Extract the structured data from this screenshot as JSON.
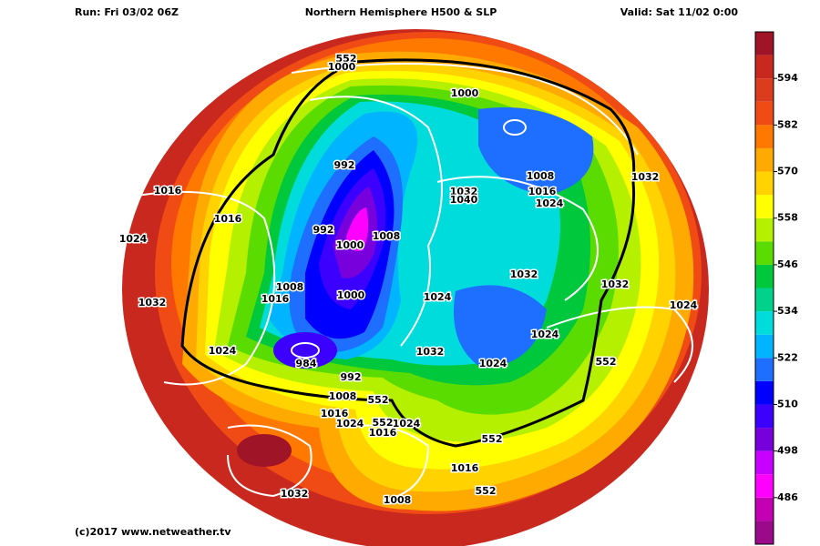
{
  "header": {
    "run": "Run: Fri 03/02 06Z",
    "title": "Northern Hemisphere H500 & SLP",
    "valid": "Valid: Sat 11/02 0:00"
  },
  "footer": {
    "credit": "(c)2017  www.netweather.tv"
  },
  "colorbar": {
    "lim": [
      474,
      606
    ],
    "ticks": [
      486,
      498,
      510,
      522,
      534,
      546,
      558,
      570,
      582,
      594
    ],
    "colors": [
      "#9b0a8a",
      "#c400b4",
      "#ff00ff",
      "#c800ff",
      "#7800dc",
      "#3c00ff",
      "#0000ff",
      "#1e6eff",
      "#00b4ff",
      "#00dcdc",
      "#00d28c",
      "#00c83c",
      "#5adc00",
      "#b4f000",
      "#ffff00",
      "#ffd200",
      "#ffaa00",
      "#ff7800",
      "#f04b14",
      "#dc3c1e",
      "#c8281e",
      "#a01428"
    ]
  },
  "contour_labels": [
    552,
    1000,
    1000,
    992,
    1016,
    1016,
    1024,
    992,
    1000,
    1008,
    1032,
    1040,
    1008,
    1016,
    1024,
    1032,
    1032,
    1032,
    1024,
    1008,
    1016,
    1000,
    1024,
    1032,
    1024,
    1024,
    984,
    1032,
    1024,
    992,
    552,
    1008,
    552,
    1016,
    1024,
    552,
    1024,
    1016,
    552,
    1016,
    552,
    1008,
    1032
  ]
}
